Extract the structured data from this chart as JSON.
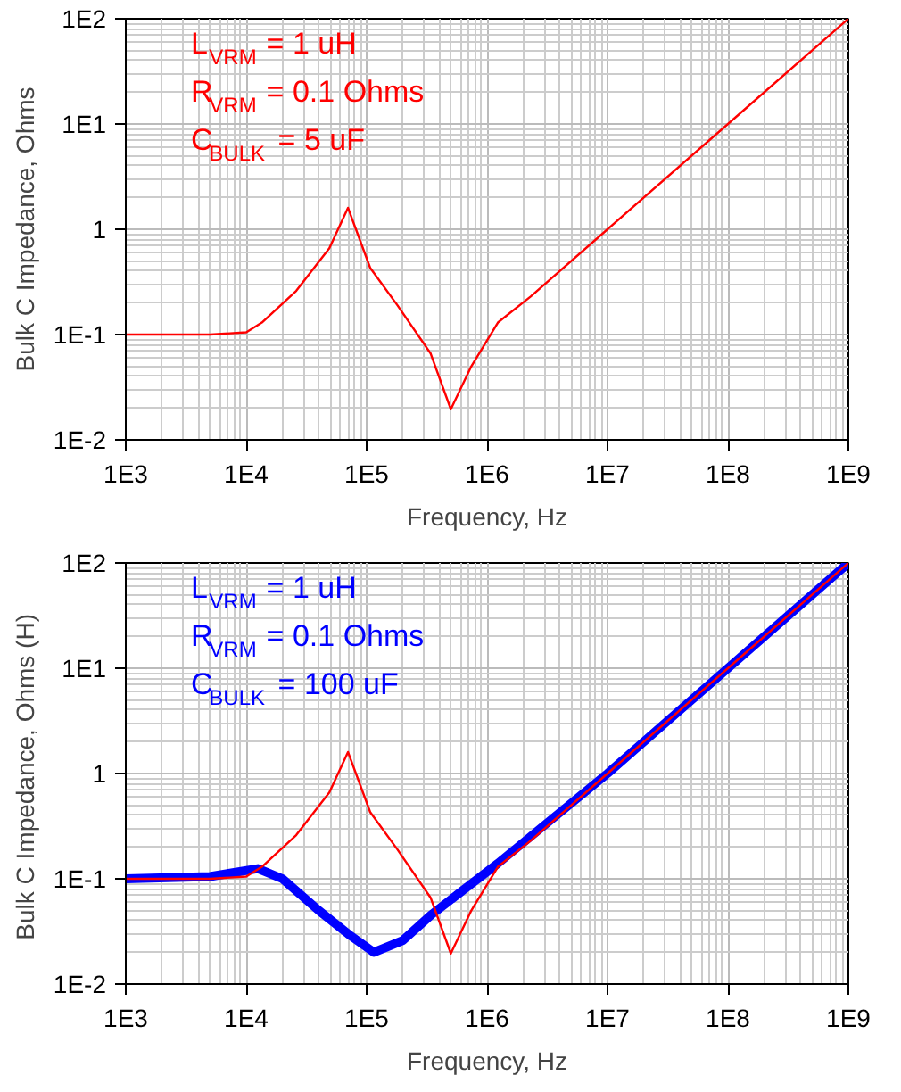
{
  "chart_data": [
    {
      "type": "line",
      "xlabel": "Frequency, Hz",
      "ylabel": "Bulk C Impedance, Ohms",
      "log": "xy",
      "grid": true,
      "xlim": [
        1000,
        1000000000
      ],
      "ylim": [
        0.01,
        100
      ],
      "xticks": [
        {
          "value": 1000,
          "label": "1E3"
        },
        {
          "value": 10000,
          "label": "1E4"
        },
        {
          "value": 100000,
          "label": "1E5"
        },
        {
          "value": 1000000,
          "label": "1E6"
        },
        {
          "value": 10000000,
          "label": "1E7"
        },
        {
          "value": 100000000,
          "label": "1E8"
        },
        {
          "value": 1000000000,
          "label": "1E9"
        }
      ],
      "yticks": [
        {
          "value": 0.01,
          "label": "1E-2"
        },
        {
          "value": 0.1,
          "label": "1E-1"
        },
        1,
        {
          "value": 10,
          "label": "1E1"
        },
        {
          "value": 100,
          "label": "1E2"
        }
      ],
      "annotations": [
        "L$_{VRM}$ = 1 uH",
        "R$_{VRM}$ = 0.1 Ohms",
        "C$_{BULK}$ = 5 uF"
      ],
      "series": [
        {
          "color": "#ff0000",
          "x": [
            1000,
            5000,
            10000,
            13500,
            26000,
            49000,
            70000,
            107000,
            180000,
            340000,
            500000,
            740000,
            1230000,
            2300000,
            10000000,
            100000000,
            1000000000
          ],
          "values": [
            0.1,
            0.1,
            0.105,
            0.13,
            0.26,
            0.66,
            1.6,
            0.43,
            0.19,
            0.066,
            0.0195,
            0.05,
            0.13,
            0.23,
            1,
            10,
            100
          ]
        }
      ]
    },
    {
      "type": "line",
      "xlabel": "Frequency, Hz",
      "ylabel": "Bulk C Impedance, Ohms  (H)",
      "log": "xy",
      "grid": true,
      "xlim": [
        1000,
        1000000000
      ],
      "ylim": [
        0.01,
        100
      ],
      "xticks": [
        {
          "value": 1000,
          "label": "1E3"
        },
        {
          "value": 10000,
          "label": "1E4"
        },
        {
          "value": 100000,
          "label": "1E5"
        },
        {
          "value": 1000000,
          "label": "1E6"
        },
        {
          "value": 10000000,
          "label": "1E7"
        },
        {
          "value": 100000000,
          "label": "1E8"
        },
        {
          "value": 1000000000,
          "label": "1E9"
        }
      ],
      "yticks": [
        {
          "value": 0.01,
          "label": "1E-2"
        },
        {
          "value": 0.1,
          "label": "1E-1"
        },
        1,
        {
          "value": 10,
          "label": "1E1"
        },
        {
          "value": 100,
          "label": "1E2"
        }
      ],
      "annotations": [
        "L$_{VRM}$ = 1 uH",
        "R$_{VRM}$ = 0.1 Ohms",
        "C$_{BULK}$ = 100 uF"
      ],
      "series": [
        {
          "color": "#0000ff",
          "x": [
            1000,
            5000,
            12500,
            20000,
            40000,
            70000,
            115000,
            200000,
            340000,
            650000,
            1230000,
            10000000,
            100000000,
            1000000000
          ],
          "values": [
            0.1,
            0.105,
            0.125,
            0.1,
            0.05,
            0.03,
            0.02,
            0.026,
            0.045,
            0.08,
            0.14,
            1,
            10,
            100
          ]
        },
        {
          "color": "#ff0000",
          "x": [
            1000,
            5000,
            10000,
            13500,
            26000,
            49000,
            70000,
            107000,
            180000,
            340000,
            500000,
            740000,
            1230000,
            2300000,
            10000000,
            100000000,
            1000000000
          ],
          "values": [
            0.1,
            0.1,
            0.105,
            0.13,
            0.26,
            0.66,
            1.6,
            0.43,
            0.19,
            0.066,
            0.0195,
            0.05,
            0.13,
            0.23,
            1,
            10,
            100
          ]
        }
      ]
    }
  ]
}
